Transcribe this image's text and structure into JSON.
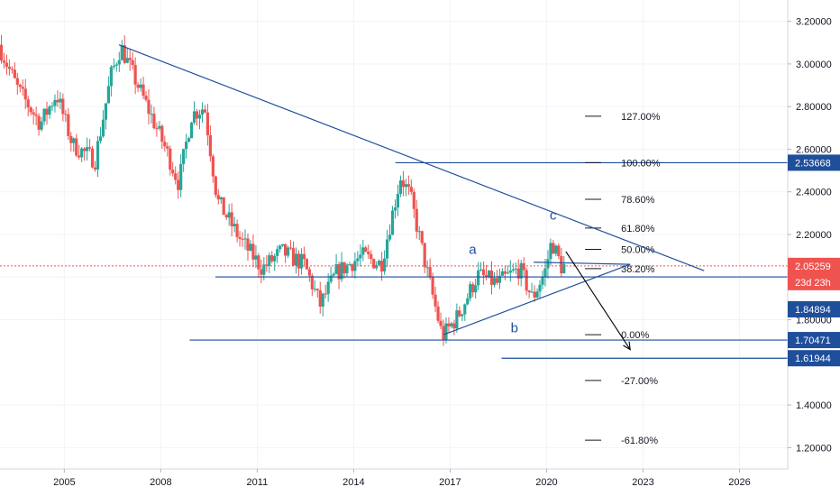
{
  "chart_data": {
    "type": "candlestick",
    "colors": {
      "up": "#26a69a",
      "down": "#ef5350",
      "trendline": "#1f4e9b",
      "fib_label_highlight": "#e53935",
      "axis_tag": "#1f4e9b",
      "price_tag": "#ef5350"
    },
    "y_axis": {
      "range": [
        1.1,
        3.3
      ],
      "ticks": [
        "3.20000",
        "3.00000",
        "2.80000",
        "2.60000",
        "2.40000",
        "2.20000",
        "2.00000",
        "1.80000",
        "1.40000",
        "1.20000"
      ]
    },
    "x_axis": {
      "range": [
        2003.0,
        2027.5
      ],
      "ticks": [
        "2005",
        "2008",
        "2011",
        "2014",
        "2017",
        "2020",
        "2023",
        "2026"
      ]
    },
    "price_path": [
      [
        2003.0,
        3.09
      ],
      [
        2003.6,
        2.88
      ],
      [
        2004.3,
        2.72
      ],
      [
        2004.8,
        2.86
      ],
      [
        2005.3,
        2.62
      ],
      [
        2006.0,
        2.55
      ],
      [
        2006.5,
        2.95
      ],
      [
        2006.8,
        3.08
      ],
      [
        2007.5,
        2.84
      ],
      [
        2008.2,
        2.6
      ],
      [
        2008.6,
        2.44
      ],
      [
        2009.0,
        2.76
      ],
      [
        2009.4,
        2.8
      ],
      [
        2009.8,
        2.36
      ],
      [
        2010.5,
        2.18
      ],
      [
        2011.2,
        2.04
      ],
      [
        2011.8,
        2.12
      ],
      [
        2012.5,
        2.06
      ],
      [
        2013.0,
        1.87
      ],
      [
        2013.5,
        2.02
      ],
      [
        2014.3,
        2.1
      ],
      [
        2014.9,
        2.06
      ],
      [
        2015.5,
        2.47
      ],
      [
        2015.8,
        2.38
      ],
      [
        2016.3,
        2.04
      ],
      [
        2016.8,
        1.72
      ],
      [
        2017.3,
        1.82
      ],
      [
        2017.9,
        2.01
      ],
      [
        2018.5,
        1.97
      ],
      [
        2019.2,
        2.04
      ],
      [
        2019.6,
        1.9
      ],
      [
        2020.0,
        2.03
      ],
      [
        2020.2,
        2.17
      ],
      [
        2020.5,
        2.05
      ]
    ],
    "price_lines": [
      {
        "label": "2.53668",
        "value": 2.53668,
        "x_from": 2015.3
      },
      {
        "label": "2.00091",
        "value": 2.00091,
        "x_from": 2009.7
      },
      {
        "label": "1.84894",
        "value": 1.84894,
        "x_from": null
      },
      {
        "label": "1.70471",
        "value": 1.70471,
        "x_from": 2008.9
      },
      {
        "label": "1.61944",
        "value": 1.61944,
        "x_from": 2018.6
      }
    ],
    "current_price": {
      "label": "2.05259",
      "value": 2.05259,
      "countdown": "23d 23h"
    },
    "fib_levels": [
      {
        "label": "127.00%",
        "value": 2.755
      },
      {
        "label": "100.00%",
        "value": 2.53668
      },
      {
        "label": "78.60%",
        "value": 2.365
      },
      {
        "label": "61.80%",
        "value": 2.23
      },
      {
        "label": "50.00%",
        "value": 2.13,
        "highlight": true
      },
      {
        "label": "38.20%",
        "value": 2.04
      },
      {
        "label": "0.00%",
        "value": 1.73
      },
      {
        "label": "-27.00%",
        "value": 1.515
      },
      {
        "label": "-61.80%",
        "value": 1.235
      }
    ],
    "trendlines": [
      {
        "from": [
          2006.7,
          3.09
        ],
        "to": [
          2024.9,
          2.03
        ]
      },
      {
        "from": [
          2016.8,
          1.73
        ],
        "to": [
          2022.6,
          2.06
        ]
      },
      {
        "from": [
          2019.6,
          2.07
        ],
        "to": [
          2022.6,
          2.06
        ]
      }
    ],
    "projection_arrow": {
      "from": [
        2020.6,
        2.12
      ],
      "to": [
        2022.6,
        1.66
      ]
    },
    "wave_labels": [
      {
        "text": "a",
        "x": 2017.7,
        "y": 2.11
      },
      {
        "text": "b",
        "x": 2019.0,
        "y": 1.74
      },
      {
        "text": "c",
        "x": 2020.2,
        "y": 2.27
      }
    ]
  }
}
